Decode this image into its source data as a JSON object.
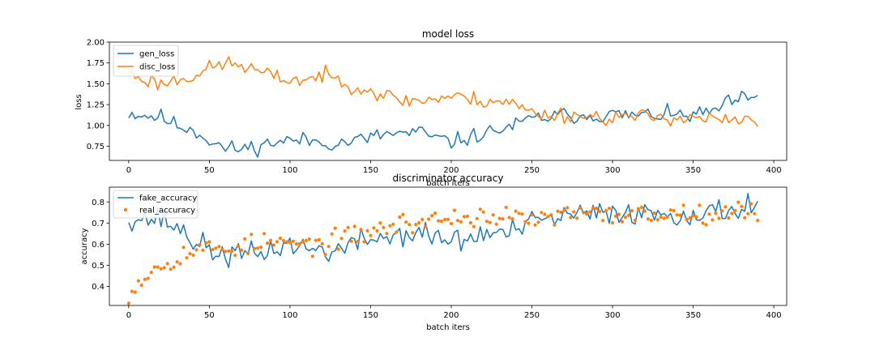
{
  "colors": {
    "blue": "#1f77b4",
    "orange": "#ff7f0e"
  },
  "chart_data": [
    {
      "type": "line",
      "title": "model loss",
      "xlabel": "batch iters",
      "ylabel": "loss",
      "xlim": [
        -12,
        408
      ],
      "ylim": [
        0.58,
        2.0
      ],
      "xticks": [
        0,
        50,
        100,
        150,
        200,
        250,
        300,
        350,
        400
      ],
      "yticks": [
        0.75,
        1.0,
        1.25,
        1.5,
        1.75,
        2.0
      ],
      "ytick_labels": [
        "0.75",
        "1.00",
        "1.25",
        "1.50",
        "1.75",
        "2.00"
      ],
      "legend": "top-left",
      "grid": false,
      "series": [
        {
          "name": "gen_loss",
          "style": "line",
          "color": "#1f77b4",
          "anchors": [
            [
              0,
              1.15
            ],
            [
              10,
              1.12
            ],
            [
              20,
              1.1
            ],
            [
              30,
              1.0
            ],
            [
              40,
              0.95
            ],
            [
              50,
              0.82
            ],
            [
              60,
              0.72
            ],
            [
              70,
              0.72
            ],
            [
              80,
              0.75
            ],
            [
              90,
              0.8
            ],
            [
              100,
              0.82
            ],
            [
              110,
              0.82
            ],
            [
              120,
              0.8
            ],
            [
              130,
              0.78
            ],
            [
              140,
              0.82
            ],
            [
              150,
              0.85
            ],
            [
              160,
              0.9
            ],
            [
              170,
              0.9
            ],
            [
              180,
              0.92
            ],
            [
              190,
              0.85
            ],
            [
              200,
              0.8
            ],
            [
              210,
              0.85
            ],
            [
              220,
              0.9
            ],
            [
              230,
              0.95
            ],
            [
              240,
              1.0
            ],
            [
              250,
              1.08
            ],
            [
              260,
              1.1
            ],
            [
              270,
              1.12
            ],
            [
              280,
              1.12
            ],
            [
              290,
              1.12
            ],
            [
              300,
              1.13
            ],
            [
              310,
              1.12
            ],
            [
              320,
              1.12
            ],
            [
              330,
              1.13
            ],
            [
              340,
              1.12
            ],
            [
              350,
              1.12
            ],
            [
              360,
              1.15
            ],
            [
              370,
              1.25
            ],
            [
              380,
              1.32
            ],
            [
              390,
              1.3
            ]
          ],
          "noise": 0.09,
          "seed": 11
        },
        {
          "name": "disc_loss",
          "style": "line",
          "color": "#ff7f0e",
          "anchors": [
            [
              0,
              1.62
            ],
            [
              10,
              1.55
            ],
            [
              20,
              1.5
            ],
            [
              30,
              1.55
            ],
            [
              40,
              1.6
            ],
            [
              50,
              1.68
            ],
            [
              60,
              1.75
            ],
            [
              70,
              1.72
            ],
            [
              80,
              1.65
            ],
            [
              90,
              1.58
            ],
            [
              100,
              1.55
            ],
            [
              110,
              1.55
            ],
            [
              120,
              1.6
            ],
            [
              130,
              1.55
            ],
            [
              140,
              1.48
            ],
            [
              150,
              1.42
            ],
            [
              160,
              1.35
            ],
            [
              170,
              1.3
            ],
            [
              180,
              1.3
            ],
            [
              190,
              1.32
            ],
            [
              200,
              1.35
            ],
            [
              210,
              1.32
            ],
            [
              220,
              1.3
            ],
            [
              230,
              1.3
            ],
            [
              240,
              1.25
            ],
            [
              250,
              1.15
            ],
            [
              260,
              1.13
            ],
            [
              270,
              1.13
            ],
            [
              280,
              1.12
            ],
            [
              290,
              1.1
            ],
            [
              300,
              1.1
            ],
            [
              310,
              1.1
            ],
            [
              320,
              1.1
            ],
            [
              330,
              1.1
            ],
            [
              340,
              1.1
            ],
            [
              350,
              1.1
            ],
            [
              360,
              1.08
            ],
            [
              370,
              1.05
            ],
            [
              380,
              1.05
            ],
            [
              390,
              1.05
            ]
          ],
          "noise": 0.09,
          "seed": 23
        }
      ]
    },
    {
      "type": "line",
      "title": "discriminator accuracy",
      "xlabel": "batch iters",
      "ylabel": "accuracy",
      "xlim": [
        -12,
        408
      ],
      "ylim": [
        0.31,
        0.87
      ],
      "xticks": [
        0,
        50,
        100,
        150,
        200,
        250,
        300,
        350,
        400
      ],
      "yticks": [
        0.4,
        0.5,
        0.6,
        0.7,
        0.8
      ],
      "ytick_labels": [
        "0.4",
        "0.5",
        "0.6",
        "0.7",
        "0.8"
      ],
      "legend": "top-left",
      "grid": false,
      "series": [
        {
          "name": "fake_accuracy",
          "style": "line",
          "color": "#1f77b4",
          "anchors": [
            [
              0,
              0.73
            ],
            [
              10,
              0.72
            ],
            [
              20,
              0.72
            ],
            [
              30,
              0.68
            ],
            [
              40,
              0.62
            ],
            [
              50,
              0.57
            ],
            [
              60,
              0.55
            ],
            [
              70,
              0.55
            ],
            [
              80,
              0.55
            ],
            [
              90,
              0.58
            ],
            [
              100,
              0.6
            ],
            [
              110,
              0.58
            ],
            [
              120,
              0.57
            ],
            [
              130,
              0.57
            ],
            [
              140,
              0.6
            ],
            [
              150,
              0.63
            ],
            [
              160,
              0.63
            ],
            [
              170,
              0.65
            ],
            [
              180,
              0.65
            ],
            [
              190,
              0.63
            ],
            [
              200,
              0.62
            ],
            [
              210,
              0.62
            ],
            [
              220,
              0.65
            ],
            [
              230,
              0.65
            ],
            [
              240,
              0.66
            ],
            [
              250,
              0.7
            ],
            [
              260,
              0.72
            ],
            [
              270,
              0.73
            ],
            [
              280,
              0.74
            ],
            [
              290,
              0.74
            ],
            [
              300,
              0.75
            ],
            [
              310,
              0.76
            ],
            [
              320,
              0.74
            ],
            [
              330,
              0.75
            ],
            [
              340,
              0.74
            ],
            [
              350,
              0.75
            ],
            [
              360,
              0.74
            ],
            [
              370,
              0.76
            ],
            [
              380,
              0.78
            ],
            [
              390,
              0.79
            ]
          ],
          "noise": 0.055,
          "seed": 37
        },
        {
          "name": "real_accuracy",
          "style": "scatter",
          "color": "#ff7f0e",
          "anchors": [
            [
              0,
              0.34
            ],
            [
              5,
              0.42
            ],
            [
              10,
              0.45
            ],
            [
              15,
              0.48
            ],
            [
              20,
              0.5
            ],
            [
              30,
              0.54
            ],
            [
              40,
              0.57
            ],
            [
              50,
              0.58
            ],
            [
              60,
              0.58
            ],
            [
              70,
              0.59
            ],
            [
              80,
              0.6
            ],
            [
              90,
              0.61
            ],
            [
              100,
              0.6
            ],
            [
              110,
              0.6
            ],
            [
              120,
              0.6
            ],
            [
              130,
              0.62
            ],
            [
              140,
              0.64
            ],
            [
              150,
              0.66
            ],
            [
              160,
              0.68
            ],
            [
              170,
              0.7
            ],
            [
              180,
              0.7
            ],
            [
              190,
              0.72
            ],
            [
              200,
              0.72
            ],
            [
              210,
              0.73
            ],
            [
              220,
              0.73
            ],
            [
              230,
              0.73
            ],
            [
              240,
              0.72
            ],
            [
              250,
              0.72
            ],
            [
              260,
              0.72
            ],
            [
              270,
              0.74
            ],
            [
              280,
              0.74
            ],
            [
              290,
              0.74
            ],
            [
              300,
              0.74
            ],
            [
              310,
              0.74
            ],
            [
              320,
              0.74
            ],
            [
              330,
              0.74
            ],
            [
              340,
              0.75
            ],
            [
              350,
              0.75
            ],
            [
              360,
              0.75
            ],
            [
              370,
              0.76
            ],
            [
              380,
              0.75
            ],
            [
              390,
              0.75
            ]
          ],
          "noise": 0.045,
          "seed": 53
        }
      ]
    }
  ]
}
